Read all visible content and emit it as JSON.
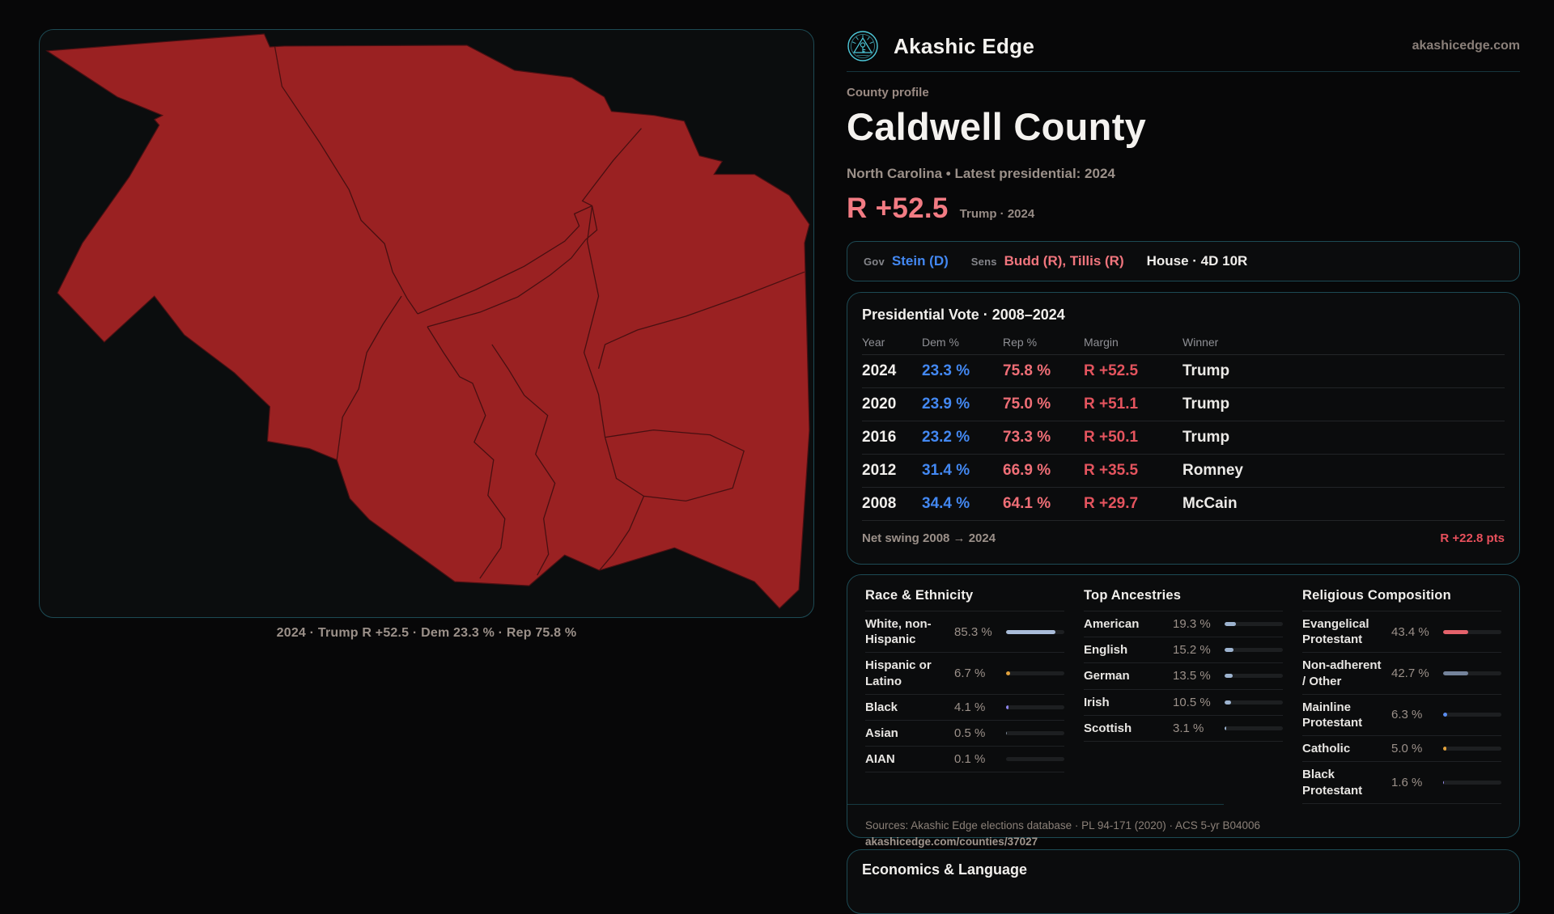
{
  "brand": {
    "name": "Akashic Edge",
    "domain": "akashicedge.com",
    "accent": "#4ec9da"
  },
  "profile": {
    "eyebrow": "County profile",
    "title": "Caldwell County",
    "subtitle": "North Carolina • Latest presidential: 2024",
    "margin_big": "R +52.5",
    "margin_context": "Trump · 2024"
  },
  "officials": {
    "gov_label": "Gov",
    "gov_value": "Stein (D)",
    "sens_label": "Sens",
    "sens_value": "Budd (R), Tillis (R)",
    "house_value": "House · 4D 10R"
  },
  "colors": {
    "dem_blue": "#4388f2",
    "rep_salmon": "#f0757d",
    "margin_red": "#e4545e",
    "panel_border": "#1d4a54"
  },
  "pres_table": {
    "title": "Presidential Vote · 2008–2024",
    "columns": [
      "Year",
      "Dem %",
      "Rep %",
      "Margin",
      "Winner"
    ],
    "rows": [
      {
        "year": "2024",
        "dem": "23.3 %",
        "rep": "75.8 %",
        "margin": "R +52.5",
        "winner": "Trump"
      },
      {
        "year": "2020",
        "dem": "23.9 %",
        "rep": "75.0 %",
        "margin": "R +51.1",
        "winner": "Trump"
      },
      {
        "year": "2016",
        "dem": "23.2 %",
        "rep": "73.3 %",
        "margin": "R +50.1",
        "winner": "Trump"
      },
      {
        "year": "2012",
        "dem": "31.4 %",
        "rep": "66.9 %",
        "margin": "R +35.5",
        "winner": "Romney"
      },
      {
        "year": "2008",
        "dem": "34.4 %",
        "rep": "64.1 %",
        "margin": "R +29.7",
        "winner": "McCain"
      }
    ],
    "net_swing_label": "Net swing 2008 → 2024",
    "net_swing_value": "R +22.8 pts"
  },
  "demographics": {
    "race": {
      "title": "Race & Ethnicity",
      "rows": [
        {
          "label": "White, non-Hispanic",
          "value": "85.3 %",
          "pct": 85.3,
          "color": "#a9bcd9"
        },
        {
          "label": "Hispanic or Latino",
          "value": "6.7 %",
          "pct": 6.7,
          "color": "#e2a23c"
        },
        {
          "label": "Black",
          "value": "4.1 %",
          "pct": 4.1,
          "color": "#8f86ee"
        },
        {
          "label": "Asian",
          "value": "0.5 %",
          "pct": 0.5,
          "color": "#7b8694"
        },
        {
          "label": "AIAN",
          "value": "0.1 %",
          "pct": 0.1,
          "color": "#7b8694"
        }
      ]
    },
    "ancestries": {
      "title": "Top Ancestries",
      "rows": [
        {
          "label": "American",
          "value": "19.3 %",
          "pct": 19.3,
          "color": "#9db3cf"
        },
        {
          "label": "English",
          "value": "15.2 %",
          "pct": 15.2,
          "color": "#9db3cf"
        },
        {
          "label": "German",
          "value": "13.5 %",
          "pct": 13.5,
          "color": "#9db3cf"
        },
        {
          "label": "Irish",
          "value": "10.5 %",
          "pct": 10.5,
          "color": "#9db3cf"
        },
        {
          "label": "Scottish",
          "value": "3.1 %",
          "pct": 3.1,
          "color": "#9db3cf"
        }
      ]
    },
    "religion": {
      "title": "Religious Composition",
      "rows": [
        {
          "label": "Evangelical Protestant",
          "value": "43.4 %",
          "pct": 43.4,
          "color": "#e4626b"
        },
        {
          "label": "Non-adherent / Other",
          "value": "42.7 %",
          "pct": 42.7,
          "color": "#74839b"
        },
        {
          "label": "Mainline Protestant",
          "value": "6.3 %",
          "pct": 6.3,
          "color": "#5a8df0"
        },
        {
          "label": "Catholic",
          "value": "5.0 %",
          "pct": 5.0,
          "color": "#e2a23c"
        },
        {
          "label": "Black Protestant",
          "value": "1.6 %",
          "pct": 1.6,
          "color": "#9a8ff2"
        }
      ]
    }
  },
  "sources": {
    "line1": "Sources: Akashic Edge elections database · PL 94-171 (2020) · ACS 5-yr B04006",
    "line2": "akashicedge.com/counties/37027"
  },
  "economics": {
    "title": "Economics & Language"
  },
  "map": {
    "caption": "2024 · Trump R +52.5 · Dem 23.3 % · Rep 75.8 %",
    "fill": "#9a2122",
    "edge": "#4a1013",
    "inner_line": "#3f0e10"
  }
}
